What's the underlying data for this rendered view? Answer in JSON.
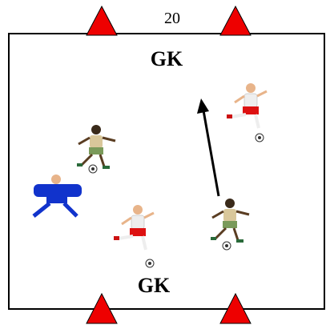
{
  "field": {
    "distance_label": "20"
  },
  "goalkeepers": [
    {
      "label": "GK"
    },
    {
      "label": "GK"
    }
  ]
}
